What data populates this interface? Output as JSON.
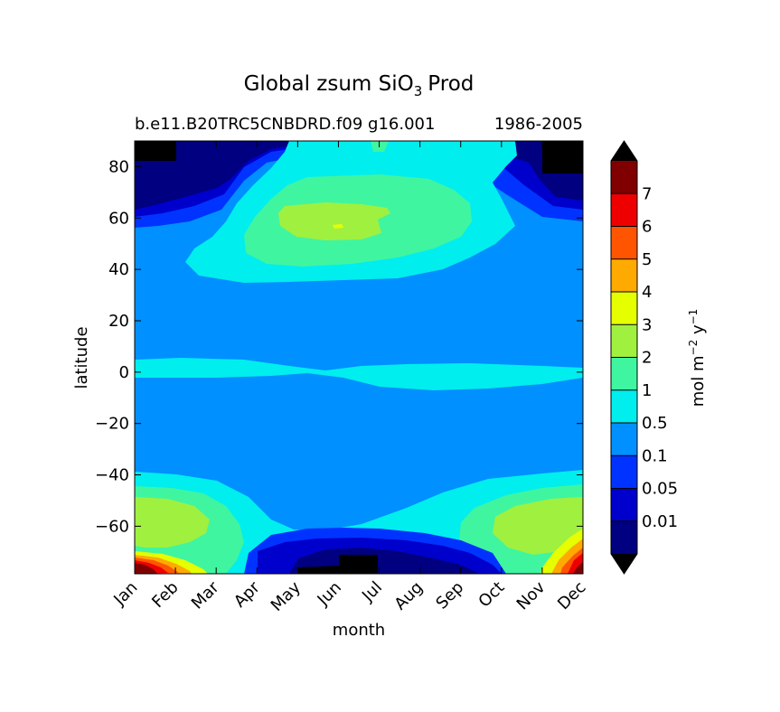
{
  "chart_data": {
    "type": "heatmap",
    "title_main": "Global zsum SiO",
    "title_sub": "3",
    "title_tail": "Prod",
    "subtitle_left": "b.e11.B20TRC5CNBDRD.f09 g16.001",
    "subtitle_right": "1986-2005",
    "xlabel": "month",
    "ylabel": "latitude",
    "x_ticks": [
      "Jan",
      "Feb",
      "Mar",
      "Apr",
      "May",
      "Jun",
      "Jul",
      "Aug",
      "Sep",
      "Oct",
      "Nov",
      "Dec"
    ],
    "y_ticks": [
      {
        "value": 80,
        "label": "80"
      },
      {
        "value": 60,
        "label": "60"
      },
      {
        "value": 40,
        "label": "40"
      },
      {
        "value": 20,
        "label": "20"
      },
      {
        "value": 0,
        "label": "0"
      },
      {
        "value": -20,
        "label": "−20"
      },
      {
        "value": -40,
        "label": "−40"
      },
      {
        "value": -60,
        "label": "−60"
      }
    ],
    "xlim": [
      0,
      11
    ],
    "ylim": [
      -78.5,
      90
    ],
    "colorbar": {
      "label_main": "mol m",
      "label_exp1": "−2",
      "label_mid": " y",
      "label_exp2": "−1",
      "levels": [
        0.01,
        0.05,
        0.1,
        0.5,
        1,
        2,
        3,
        4,
        5,
        6,
        7
      ],
      "tick_labels": [
        "0.01",
        "0.05",
        "0.1",
        "0.5",
        "1",
        "2",
        "3",
        "4",
        "5",
        "6",
        "7"
      ],
      "colors": [
        "#000080",
        "#0000cd",
        "#0033ff",
        "#0090ff",
        "#00eeee",
        "#40f5a0",
        "#a0f040",
        "#e6ff00",
        "#ffaa00",
        "#ff5500",
        "#ee0000",
        "#800000"
      ],
      "under_color": "#000000",
      "over_color": "#000000"
    },
    "regions_description_values": {
      "background_band": 0.3,
      "north_bloom_peak": 3.2,
      "equatorial_band": 0.7,
      "south_bloom_peak": 2.5,
      "polar_edge_peak": 7.5
    }
  }
}
